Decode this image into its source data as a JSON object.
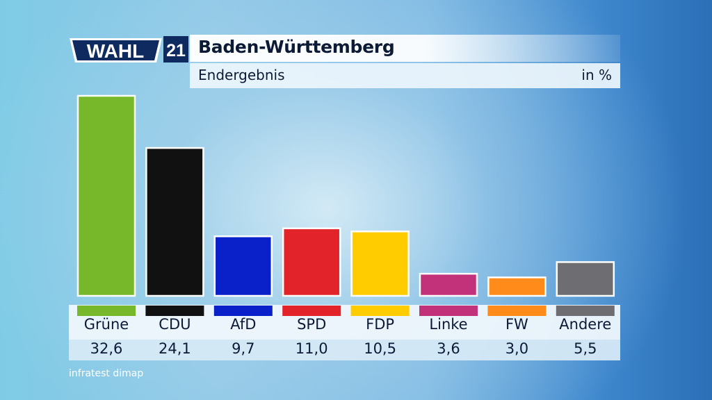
{
  "logo": {
    "word": "WAHL",
    "year": "21"
  },
  "header": {
    "title": "Baden-Württemberg",
    "subtitle": "Endergebnis",
    "unit": "in %"
  },
  "source": "infratest dimap",
  "chart_data": {
    "type": "bar",
    "title": "Baden-Württemberg",
    "subtitle": "Endergebnis",
    "unit": "in %",
    "categories": [
      "Grüne",
      "CDU",
      "AfD",
      "SPD",
      "FDP",
      "Linke",
      "FW",
      "Andere"
    ],
    "values": [
      32.6,
      24.1,
      9.7,
      11.0,
      10.5,
      3.6,
      3.0,
      5.5
    ],
    "value_labels": [
      "32,6",
      "24,1",
      "9,7",
      "11,0",
      "10,5",
      "3,6",
      "3,0",
      "5,5"
    ],
    "colors": [
      "#76b82a",
      "#111111",
      "#0a20c8",
      "#e3232a",
      "#ffcc00",
      "#c2327a",
      "#ff8c1a",
      "#6e6e72"
    ],
    "ylim": [
      0,
      32.6
    ],
    "grid": false,
    "legend": "none"
  }
}
